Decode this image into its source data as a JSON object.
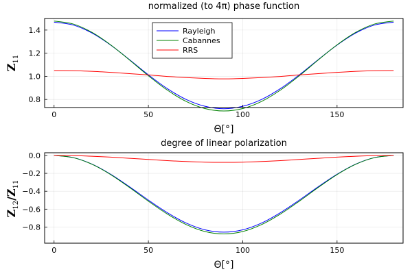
{
  "chart_data": [
    {
      "type": "line",
      "title": "normalized (to 4π) phase function",
      "xlabel": "Θ[°]",
      "ylabel_main": "Z",
      "ylabel_sub": "11",
      "xlim": [
        -5,
        185
      ],
      "ylim": [
        0.73,
        1.5
      ],
      "xticks": [
        0,
        50,
        100,
        150
      ],
      "xticklabels": [
        "0",
        "50",
        "100",
        "150"
      ],
      "yticks": [
        0.8,
        1.0,
        1.2,
        1.4
      ],
      "yticklabels": [
        "0.8",
        "1.0",
        "1.2",
        "1.4"
      ],
      "grid": true,
      "legend": "top-center",
      "series": [
        {
          "name": "Rayleigh",
          "color": "#0000ff",
          "x": [
            0,
            10,
            20,
            30,
            40,
            50,
            60,
            70,
            80,
            90,
            100,
            110,
            120,
            130,
            140,
            150,
            160,
            170,
            180
          ],
          "y": [
            1.468,
            1.444,
            1.375,
            1.27,
            1.144,
            1.013,
            0.894,
            0.8,
            0.741,
            0.72,
            0.741,
            0.8,
            0.894,
            1.013,
            1.144,
            1.27,
            1.375,
            1.444,
            1.468
          ]
        },
        {
          "name": "Cabannes",
          "color": "#008000",
          "x": [
            0,
            10,
            20,
            30,
            40,
            50,
            60,
            70,
            80,
            90,
            100,
            110,
            120,
            130,
            140,
            150,
            160,
            170,
            180
          ],
          "y": [
            1.478,
            1.453,
            1.381,
            1.272,
            1.141,
            1.005,
            0.881,
            0.783,
            0.721,
            0.7,
            0.721,
            0.783,
            0.881,
            1.005,
            1.141,
            1.272,
            1.381,
            1.453,
            1.478
          ]
        },
        {
          "name": "RRS",
          "color": "#ff0000",
          "x": [
            0,
            10,
            20,
            30,
            40,
            50,
            60,
            70,
            80,
            90,
            100,
            110,
            120,
            130,
            140,
            150,
            160,
            170,
            180
          ],
          "y": [
            1.05,
            1.048,
            1.043,
            1.034,
            1.023,
            1.012,
            0.999,
            0.989,
            0.982,
            0.978,
            0.982,
            0.989,
            0.999,
            1.012,
            1.023,
            1.034,
            1.043,
            1.048,
            1.05
          ]
        }
      ]
    },
    {
      "type": "line",
      "title": "degree of linear polarization",
      "xlabel": "Θ[°]",
      "ylabel_main": "Z",
      "ylabel_sub1": "12",
      "ylabel_slash": "/",
      "ylabel_sub2": "11",
      "xlim": [
        -5,
        185
      ],
      "ylim": [
        -0.98,
        0.03
      ],
      "xticks": [
        0,
        50,
        100,
        150
      ],
      "xticklabels": [
        "0",
        "50",
        "100",
        "150"
      ],
      "yticks": [
        0.0,
        -0.2,
        -0.4,
        -0.6,
        -0.8
      ],
      "yticklabels": [
        "0.0",
        "−0.2",
        "−0.4",
        "−0.6",
        "−0.8"
      ],
      "grid": true,
      "legend": "none",
      "series": [
        {
          "name": "Rayleigh",
          "color": "#0000ff",
          "x": [
            0,
            10,
            20,
            30,
            40,
            50,
            60,
            70,
            80,
            90,
            100,
            110,
            120,
            130,
            140,
            150,
            160,
            170,
            180
          ],
          "y": [
            0.0,
            -0.023,
            -0.096,
            -0.21,
            -0.35,
            -0.499,
            -0.639,
            -0.755,
            -0.831,
            -0.857,
            -0.831,
            -0.755,
            -0.639,
            -0.499,
            -0.35,
            -0.21,
            -0.096,
            -0.023,
            0.0
          ]
        },
        {
          "name": "Cabannes",
          "color": "#008000",
          "x": [
            0,
            10,
            20,
            30,
            40,
            50,
            60,
            70,
            80,
            90,
            100,
            110,
            120,
            130,
            140,
            150,
            160,
            170,
            180
          ],
          "y": [
            0.0,
            -0.024,
            -0.098,
            -0.214,
            -0.358,
            -0.511,
            -0.654,
            -0.772,
            -0.85,
            -0.877,
            -0.85,
            -0.772,
            -0.654,
            -0.511,
            -0.358,
            -0.214,
            -0.098,
            -0.024,
            0.0
          ]
        },
        {
          "name": "RRS",
          "color": "#ff0000",
          "x": [
            0,
            10,
            20,
            30,
            40,
            50,
            60,
            70,
            80,
            90,
            100,
            110,
            120,
            130,
            140,
            150,
            160,
            170,
            180
          ],
          "y": [
            0.0,
            -0.002,
            -0.009,
            -0.019,
            -0.032,
            -0.045,
            -0.058,
            -0.068,
            -0.075,
            -0.077,
            -0.075,
            -0.068,
            -0.058,
            -0.045,
            -0.032,
            -0.019,
            -0.009,
            -0.002,
            0.0
          ]
        }
      ]
    }
  ]
}
